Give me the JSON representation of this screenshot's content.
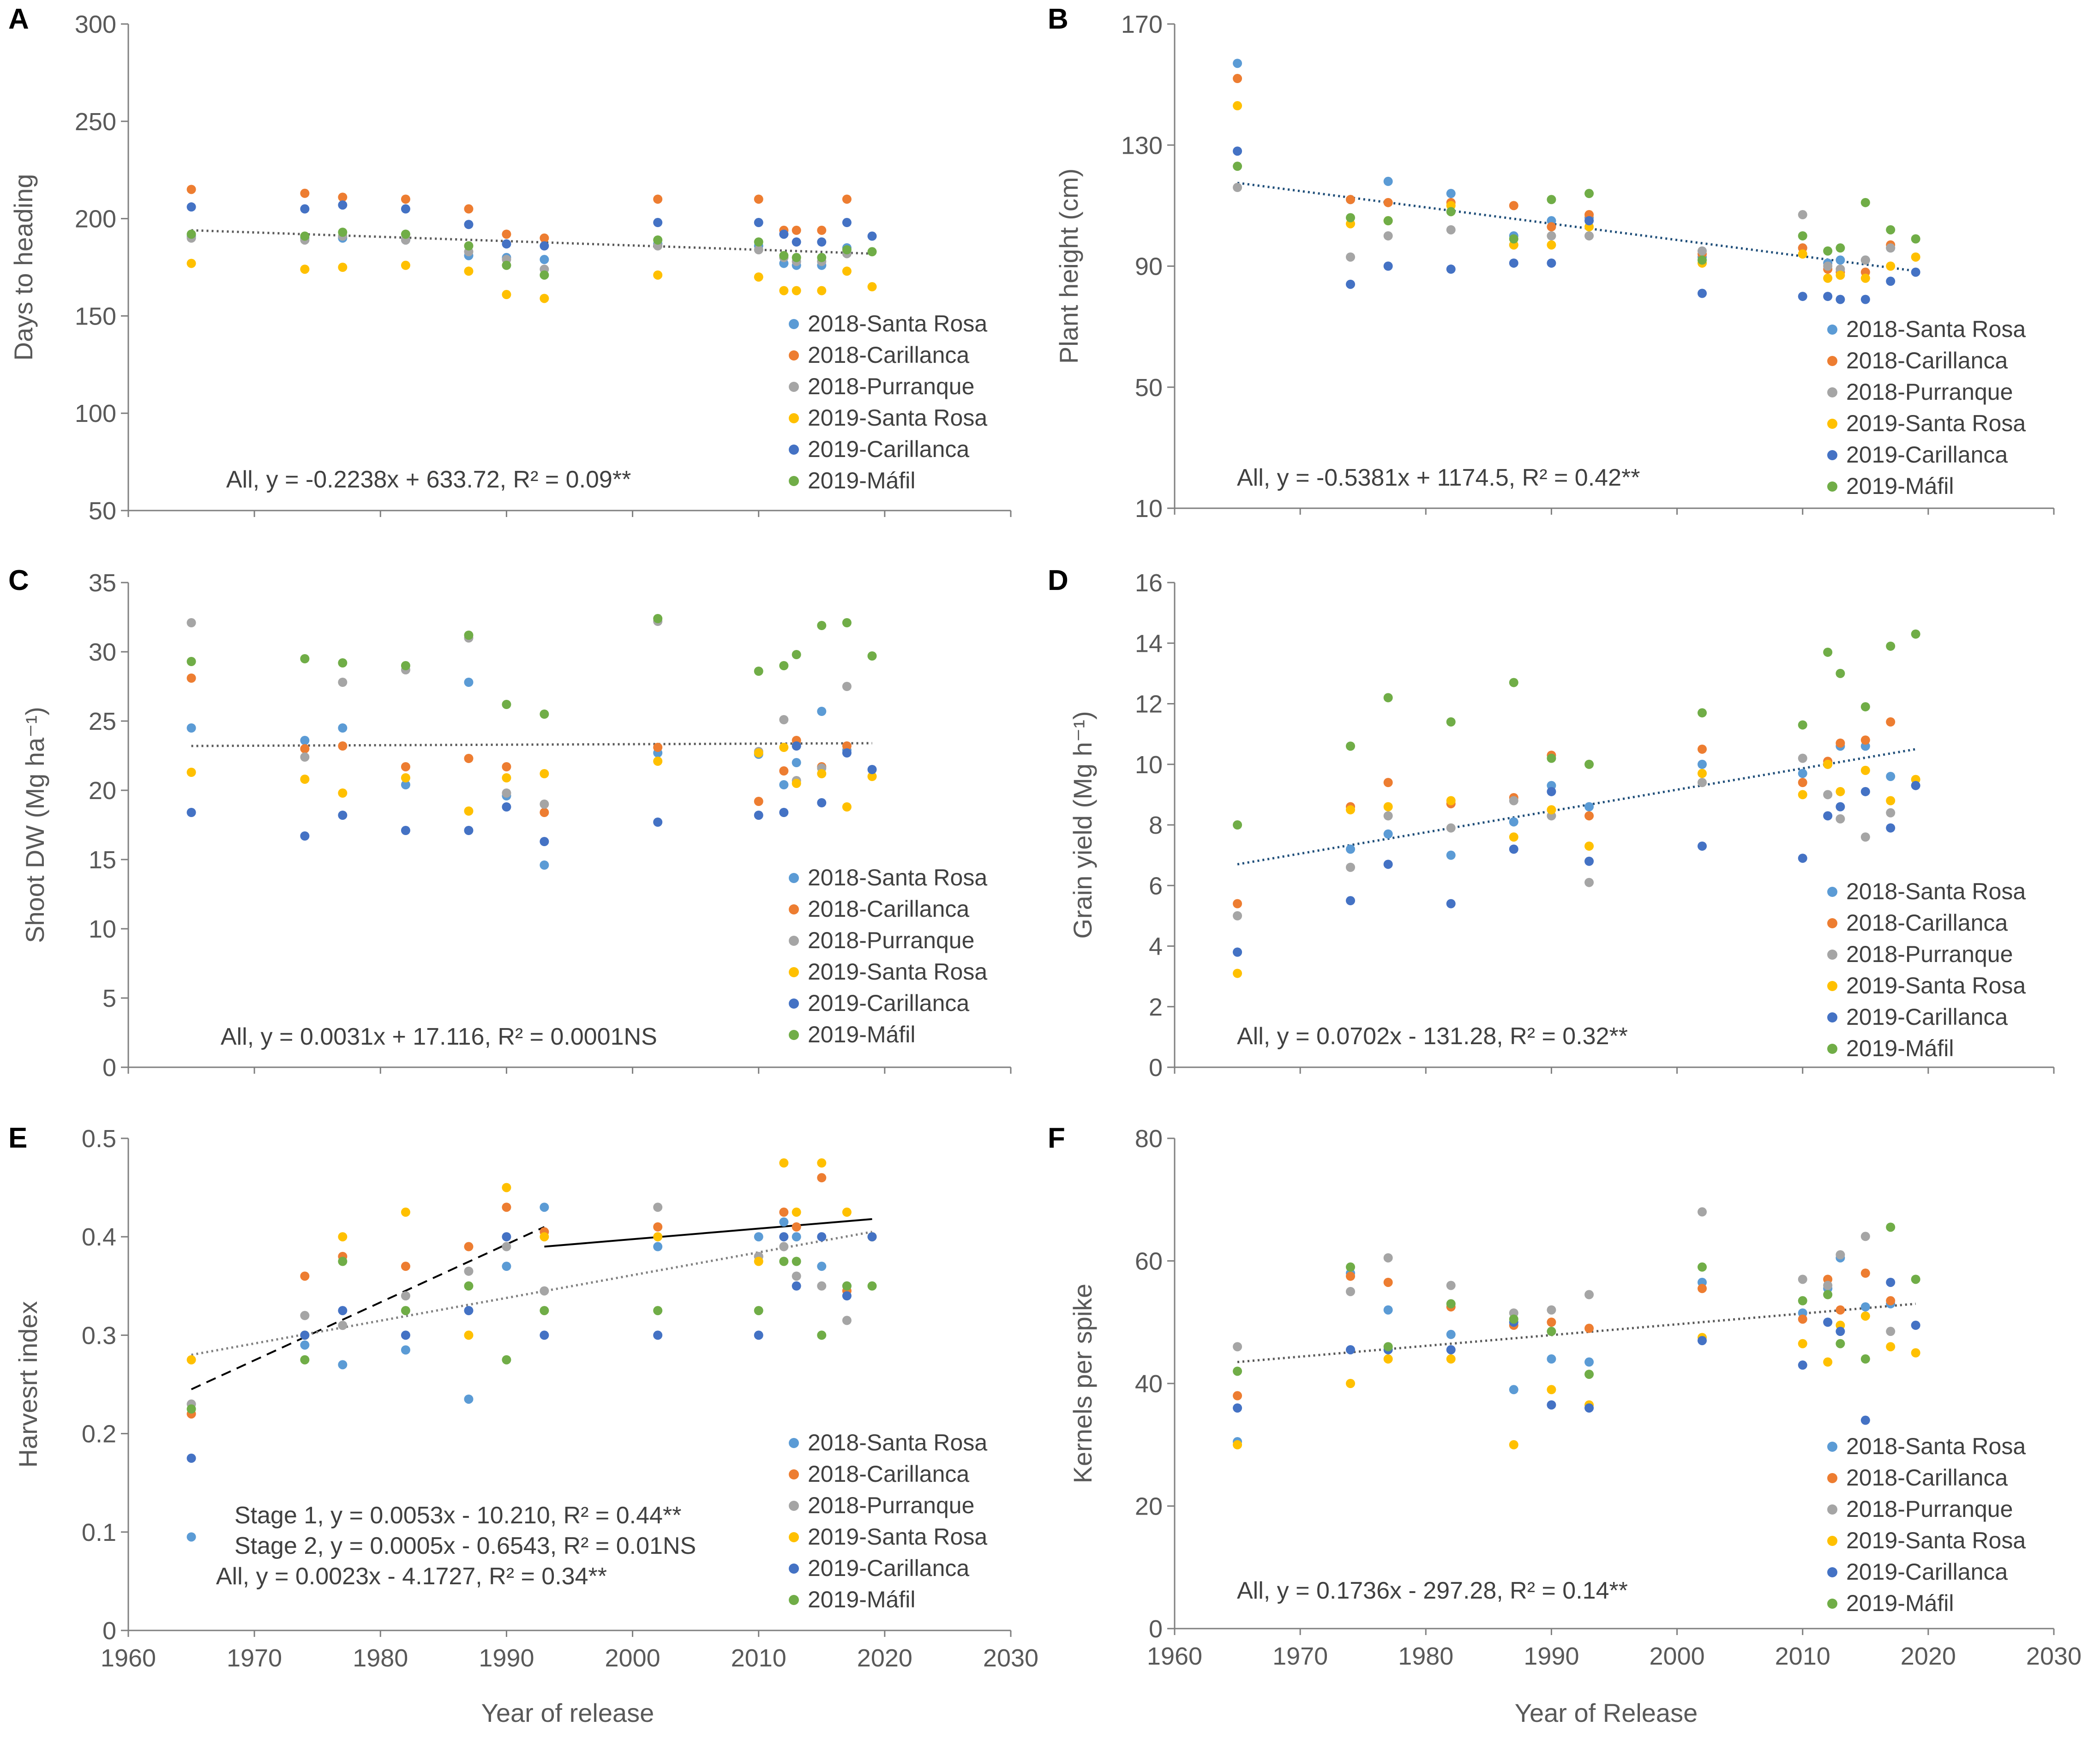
{
  "figure": {
    "x_label_left": "Year of release",
    "x_label_right": "Year of Release"
  },
  "legend_colors": {
    "2018-Santa Rosa": "#5b9bd5",
    "2018-Carillanca": "#ed7d31",
    "2018-Purranque": "#a5a5a5",
    "2019-Santa Rosa": "#ffc000",
    "2019-Carillanca": "#4472c4",
    "2019-Máfil": "#70ad47"
  },
  "chart_data": [
    {
      "type": "scatter",
      "panel": "A",
      "ylabel": "Days to heading",
      "xlim": [
        1960,
        2030
      ],
      "ylim": [
        50,
        300
      ],
      "yticks": [
        50,
        100,
        150,
        200,
        250,
        300
      ],
      "xticks": [],
      "years": [
        1965,
        1974,
        1977,
        1982,
        1987,
        1990,
        1993,
        2002,
        2010,
        2012,
        2013,
        2015,
        2017,
        2019
      ],
      "series": [
        {
          "name": "2018-Santa Rosa",
          "values": [
            191,
            190,
            190,
            189,
            181,
            180,
            179,
            187,
            186,
            177,
            176,
            176,
            185,
            null
          ]
        },
        {
          "name": "2018-Carillanca",
          "values": [
            215,
            213,
            211,
            210,
            205,
            192,
            190,
            210,
            210,
            194,
            194,
            194,
            210,
            null
          ]
        },
        {
          "name": "2018-Purranque",
          "values": [
            190,
            189,
            191,
            189,
            183,
            179,
            174,
            186,
            184,
            180,
            178,
            178,
            182,
            null
          ]
        },
        {
          "name": "2019-Santa Rosa",
          "values": [
            177,
            174,
            175,
            176,
            173,
            161,
            159,
            171,
            170,
            163,
            163,
            163,
            173,
            165
          ]
        },
        {
          "name": "2019-Carillanca",
          "values": [
            206,
            205,
            207,
            205,
            197,
            187,
            186,
            198,
            198,
            192,
            188,
            188,
            198,
            191
          ]
        },
        {
          "name": "2019-Máfil",
          "values": [
            192,
            191,
            193,
            192,
            186,
            176,
            171,
            189,
            188,
            181,
            180,
            180,
            184,
            183
          ]
        }
      ],
      "trendline": {
        "style": "dotted",
        "color": "#595959",
        "x": [
          1965,
          2019
        ],
        "y": [
          194,
          182
        ]
      },
      "equations": [
        "All, y = -0.2238x + 633.72, R² = 0.09**"
      ],
      "legend": [
        "2018-Santa Rosa",
        "2018-Carillanca",
        "2018-Purranque",
        "2019-Santa Rosa",
        "2019-Carillanca",
        "2019-Máfil"
      ]
    },
    {
      "type": "scatter",
      "panel": "B",
      "ylabel": "Plant height (cm)",
      "xlim": [
        1960,
        2030
      ],
      "ylim": [
        10,
        170
      ],
      "yticks": [
        10,
        50,
        90,
        130,
        170
      ],
      "xticks": [],
      "years": [
        1965,
        1974,
        1977,
        1982,
        1987,
        1990,
        1993,
        2002,
        2010,
        2012,
        2013,
        2015,
        2017,
        2019
      ],
      "series": [
        {
          "name": "2018-Santa Rosa",
          "values": [
            157,
            112,
            118,
            114,
            100,
            105,
            106,
            93,
            96,
            91,
            92,
            92,
            96,
            null
          ]
        },
        {
          "name": "2018-Carillanca",
          "values": [
            152,
            112,
            111,
            111,
            110,
            103,
            107,
            94,
            96,
            89,
            88,
            88,
            97,
            null
          ]
        },
        {
          "name": "2018-Purranque",
          "values": [
            116,
            93,
            100,
            102,
            97,
            100,
            100,
            95,
            107,
            90,
            89,
            92,
            96,
            null
          ]
        },
        {
          "name": "2019-Santa Rosa",
          "values": [
            143,
            104,
            105,
            110,
            97,
            97,
            103,
            91,
            94,
            86,
            87,
            86,
            90,
            93
          ]
        },
        {
          "name": "2019-Carillanca",
          "values": [
            128,
            84,
            90,
            89,
            91,
            91,
            105,
            81,
            80,
            80,
            79,
            79,
            85,
            88
          ]
        },
        {
          "name": "2019-Máfil",
          "values": [
            123,
            106,
            105,
            108,
            99,
            112,
            114,
            92,
            100,
            95,
            96,
            111,
            102,
            99
          ]
        }
      ],
      "trendline": {
        "style": "dotted",
        "color": "#1f4e79",
        "x": [
          1965,
          2019
        ],
        "y": [
          117.5,
          88.4
        ]
      },
      "equations": [
        "All, y = -0.5381x + 1174.5, R² = 0.42**"
      ],
      "legend": [
        "2018-Santa Rosa",
        "2018-Carillanca",
        "2018-Purranque",
        "2019-Santa Rosa",
        "2019-Carillanca",
        "2019-Máfil"
      ]
    },
    {
      "type": "scatter",
      "panel": "C",
      "ylabel": "Shoot DW (Mg ha⁻¹)",
      "xlim": [
        1960,
        2030
      ],
      "ylim": [
        0,
        35
      ],
      "yticks": [
        0,
        5,
        10,
        15,
        20,
        25,
        30,
        35
      ],
      "xticks": [],
      "years": [
        1965,
        1974,
        1977,
        1982,
        1987,
        1990,
        1993,
        2002,
        2010,
        2012,
        2013,
        2015,
        2017,
        2019
      ],
      "series": [
        {
          "name": "2018-Santa Rosa",
          "values": [
            24.5,
            23.6,
            24.5,
            20.4,
            27.8,
            19.6,
            14.6,
            22.7,
            22.6,
            20.4,
            22.0,
            25.7,
            22.9,
            null
          ]
        },
        {
          "name": "2018-Carillanca",
          "values": [
            28.1,
            23.0,
            23.2,
            21.7,
            22.3,
            21.7,
            18.4,
            23.1,
            19.2,
            21.4,
            23.6,
            21.7,
            23.2,
            null
          ]
        },
        {
          "name": "2018-Purranque",
          "values": [
            32.1,
            22.4,
            27.8,
            28.7,
            31.0,
            19.8,
            19.0,
            32.2,
            22.8,
            25.1,
            20.7,
            21.6,
            27.5,
            null
          ]
        },
        {
          "name": "2019-Santa Rosa",
          "values": [
            21.3,
            20.8,
            19.8,
            20.9,
            18.5,
            20.9,
            21.2,
            22.1,
            22.7,
            23.1,
            20.5,
            21.2,
            18.8,
            21.0
          ]
        },
        {
          "name": "2019-Carillanca",
          "values": [
            18.4,
            16.7,
            18.2,
            17.1,
            17.1,
            18.8,
            16.3,
            17.7,
            18.2,
            18.4,
            23.2,
            19.1,
            22.7,
            21.5
          ]
        },
        {
          "name": "2019-Máfil",
          "values": [
            29.3,
            29.5,
            29.2,
            29.0,
            31.2,
            26.2,
            25.5,
            32.4,
            28.6,
            29.0,
            29.8,
            31.9,
            32.1,
            29.7
          ]
        }
      ],
      "trendline": {
        "style": "dotted",
        "color": "#595959",
        "x": [
          1965,
          2019
        ],
        "y": [
          23.2,
          23.4
        ]
      },
      "equations": [
        "All, y = 0.0031x + 17.116, R² = 0.0001NS"
      ],
      "legend": [
        "2018-Santa Rosa",
        "2018-Carillanca",
        "2018-Purranque",
        "2019-Santa Rosa",
        "2019-Carillanca",
        "2019-Máfil"
      ]
    },
    {
      "type": "scatter",
      "panel": "D",
      "ylabel": "Grain yield (Mg h⁻¹)",
      "xlim": [
        1960,
        2030
      ],
      "ylim": [
        0,
        16
      ],
      "yticks": [
        0,
        2,
        4,
        6,
        8,
        10,
        12,
        14,
        16
      ],
      "xticks": [],
      "years": [
        1965,
        1974,
        1977,
        1982,
        1987,
        1990,
        1993,
        2002,
        2010,
        2012,
        2013,
        2015,
        2017,
        2019
      ],
      "series": [
        {
          "name": "2018-Santa Rosa",
          "values": [
            3.8,
            7.2,
            7.7,
            7.0,
            8.1,
            9.3,
            8.6,
            10.0,
            9.7,
            10.0,
            10.6,
            10.6,
            9.6,
            null
          ]
        },
        {
          "name": "2018-Carillanca",
          "values": [
            5.4,
            8.6,
            9.4,
            8.7,
            8.9,
            10.3,
            8.3,
            10.5,
            9.4,
            10.1,
            10.7,
            10.8,
            11.4,
            null
          ]
        },
        {
          "name": "2018-Purranque",
          "values": [
            5.0,
            6.6,
            8.3,
            7.9,
            8.8,
            8.3,
            6.1,
            9.4,
            10.2,
            9.0,
            8.2,
            7.6,
            8.4,
            null
          ]
        },
        {
          "name": "2019-Santa Rosa",
          "values": [
            3.1,
            8.5,
            8.6,
            8.8,
            7.6,
            8.5,
            7.3,
            9.7,
            9.0,
            10.0,
            9.1,
            9.8,
            8.8,
            9.5
          ]
        },
        {
          "name": "2019-Carillanca",
          "values": [
            3.8,
            5.5,
            6.7,
            5.4,
            7.2,
            9.1,
            6.8,
            7.3,
            6.9,
            8.3,
            8.6,
            9.1,
            7.9,
            9.3
          ]
        },
        {
          "name": "2019-Máfil",
          "values": [
            8.0,
            10.6,
            12.2,
            11.4,
            12.7,
            10.2,
            10.0,
            11.7,
            11.3,
            13.7,
            13.0,
            11.9,
            13.9,
            14.3
          ]
        }
      ],
      "trendline": {
        "style": "dotted",
        "color": "#1f4e79",
        "x": [
          1965,
          2019
        ],
        "y": [
          6.7,
          10.5
        ]
      },
      "equations": [
        "All, y = 0.0702x - 131.28, R² = 0.32**"
      ],
      "legend": [
        "2018-Santa Rosa",
        "2018-Carillanca",
        "2018-Purranque",
        "2019-Santa Rosa",
        "2019-Carillanca",
        "2019-Máfil"
      ]
    },
    {
      "type": "scatter",
      "panel": "E",
      "ylabel": "Harvesrt  index",
      "xlim": [
        1960,
        2030
      ],
      "ylim": [
        0,
        0.5
      ],
      "yticks": [
        0,
        0.1,
        0.2,
        0.3,
        0.4,
        0.5
      ],
      "xticks": [
        1960,
        1970,
        1980,
        1990,
        2000,
        2010,
        2020,
        2030
      ],
      "years": [
        1965,
        1974,
        1977,
        1982,
        1987,
        1990,
        1993,
        2002,
        2010,
        2012,
        2013,
        2015,
        2017,
        2019
      ],
      "series": [
        {
          "name": "2018-Santa Rosa",
          "values": [
            0.095,
            0.29,
            0.27,
            0.285,
            0.235,
            0.37,
            0.43,
            0.39,
            0.4,
            0.415,
            0.4,
            0.37,
            0.35,
            null
          ]
        },
        {
          "name": "2018-Carillanca",
          "values": [
            0.22,
            0.36,
            0.38,
            0.37,
            0.39,
            0.43,
            0.405,
            0.41,
            0.38,
            0.425,
            0.41,
            0.46,
            0.345,
            null
          ]
        },
        {
          "name": "2018-Purranque",
          "values": [
            0.23,
            0.32,
            0.31,
            0.34,
            0.365,
            0.39,
            0.345,
            0.43,
            0.38,
            0.39,
            0.36,
            0.35,
            0.315,
            null
          ]
        },
        {
          "name": "2019-Santa Rosa",
          "values": [
            0.275,
            0.3,
            0.4,
            0.425,
            0.3,
            0.45,
            0.4,
            0.4,
            0.375,
            0.475,
            0.425,
            0.475,
            0.425,
            0.4
          ]
        },
        {
          "name": "2019-Carillanca",
          "values": [
            0.175,
            0.3,
            0.325,
            0.3,
            0.325,
            0.4,
            0.3,
            0.3,
            0.3,
            0.4,
            0.35,
            0.4,
            0.34,
            0.4
          ]
        },
        {
          "name": "2019-Máfil",
          "values": [
            0.225,
            0.275,
            0.375,
            0.325,
            0.35,
            0.275,
            0.325,
            0.325,
            0.325,
            0.375,
            0.375,
            0.3,
            0.35,
            0.35
          ]
        }
      ],
      "trendlines": [
        {
          "style": "dashed",
          "color": "#000000",
          "x": [
            1965,
            1993
          ],
          "y": [
            0.245,
            0.41
          ]
        },
        {
          "style": "solid",
          "color": "#000000",
          "x": [
            1993,
            2019
          ],
          "y": [
            0.39,
            0.418
          ]
        },
        {
          "style": "dotted",
          "color": "#808080",
          "x": [
            1965,
            2019
          ],
          "y": [
            0.28,
            0.405
          ]
        }
      ],
      "equations": [
        "Stage 1, y = 0.0053x - 10.210, R² = 0.44**",
        "Stage 2, y = 0.0005x - 0.6543, R² = 0.01NS",
        "All, y = 0.0023x - 4.1727, R² = 0.34**"
      ],
      "legend": [
        "2018-Santa Rosa",
        "2018-Carillanca",
        "2018-Purranque",
        "2019-Santa Rosa",
        "2019-Carillanca",
        "2019-Máfil"
      ]
    },
    {
      "type": "scatter",
      "panel": "F",
      "ylabel": "Kernels per spike",
      "xlim": [
        1960,
        2030
      ],
      "ylim": [
        0,
        80
      ],
      "yticks": [
        0,
        20,
        40,
        60,
        80
      ],
      "xticks": [
        1960,
        1970,
        1980,
        1990,
        2000,
        2010,
        2020,
        2030
      ],
      "years": [
        1965,
        1974,
        1977,
        1982,
        1987,
        1990,
        1993,
        2002,
        2010,
        2012,
        2013,
        2015,
        2017,
        2019
      ],
      "series": [
        {
          "name": "2018-Santa Rosa",
          "values": [
            30.5,
            58.0,
            52.0,
            48.0,
            39.0,
            44.0,
            43.5,
            56.5,
            51.5,
            55.5,
            60.5,
            52.5,
            53.0,
            null
          ]
        },
        {
          "name": "2018-Carillanca",
          "values": [
            38.0,
            57.5,
            56.5,
            52.5,
            49.5,
            50.0,
            49.0,
            55.5,
            50.5,
            57.0,
            52.0,
            58.0,
            53.5,
            null
          ]
        },
        {
          "name": "2018-Purranque",
          "values": [
            46.0,
            55.0,
            60.5,
            56.0,
            51.5,
            52.0,
            54.5,
            68.0,
            57.0,
            56.0,
            61.0,
            64.0,
            48.5,
            null
          ]
        },
        {
          "name": "2019-Santa Rosa",
          "values": [
            30.0,
            40.0,
            44.0,
            44.0,
            30.0,
            39.0,
            36.5,
            47.5,
            46.5,
            43.5,
            49.5,
            51.0,
            46.0,
            45.0
          ]
        },
        {
          "name": "2019-Carillanca",
          "values": [
            36.0,
            45.5,
            45.5,
            45.5,
            50.0,
            36.5,
            36.0,
            47.0,
            43.0,
            50.0,
            48.5,
            34.0,
            56.5,
            49.5
          ]
        },
        {
          "name": "2019-Máfil",
          "values": [
            42.0,
            59.0,
            46.0,
            53.0,
            50.5,
            48.5,
            41.5,
            59.0,
            53.5,
            54.5,
            46.5,
            44.0,
            65.5,
            57.0
          ]
        }
      ],
      "trendline": {
        "style": "dotted",
        "color": "#595959",
        "x": [
          1965,
          2019
        ],
        "y": [
          43.5,
          53.0
        ]
      },
      "equations": [
        "All, y = 0.1736x - 297.28, R² = 0.14**"
      ],
      "legend": [
        "2018-Santa Rosa",
        "2018-Carillanca",
        "2018-Purranque",
        "2019-Santa Rosa",
        "2019-Carillanca",
        "2019-Máfil"
      ]
    }
  ]
}
